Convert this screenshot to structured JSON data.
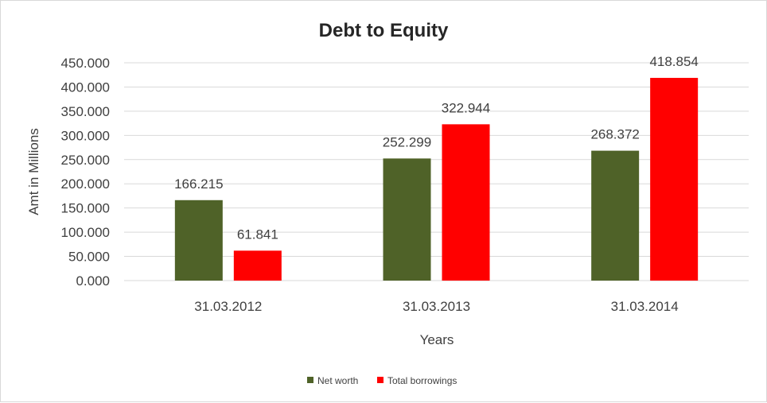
{
  "chart_data": {
    "type": "bar",
    "title": "Debt to Equity",
    "xlabel": "Years",
    "ylabel": "Amt in Millions",
    "categories": [
      "31.03.2012",
      "31.03.2013",
      "31.03.2014"
    ],
    "series": [
      {
        "name": "Net worth",
        "values": [
          166.215,
          252.299,
          268.372
        ],
        "value_labels": [
          "166.215",
          "252.299",
          "268.372"
        ],
        "color": "#4f6228"
      },
      {
        "name": "Total borrowings",
        "values": [
          61.841,
          322.944,
          418.854
        ],
        "value_labels": [
          "61.841",
          "322.944",
          "418.854"
        ],
        "color": "#ff0000"
      }
    ],
    "ylim": [
      0,
      450
    ],
    "yticks": [
      0,
      50,
      100,
      150,
      200,
      250,
      300,
      350,
      400,
      450
    ],
    "ytick_labels": [
      "0.000",
      "50.000",
      "100.000",
      "150.000",
      "200.000",
      "250.000",
      "300.000",
      "350.000",
      "400.000",
      "450.000"
    ],
    "grid": true,
    "legend_position": "bottom"
  }
}
